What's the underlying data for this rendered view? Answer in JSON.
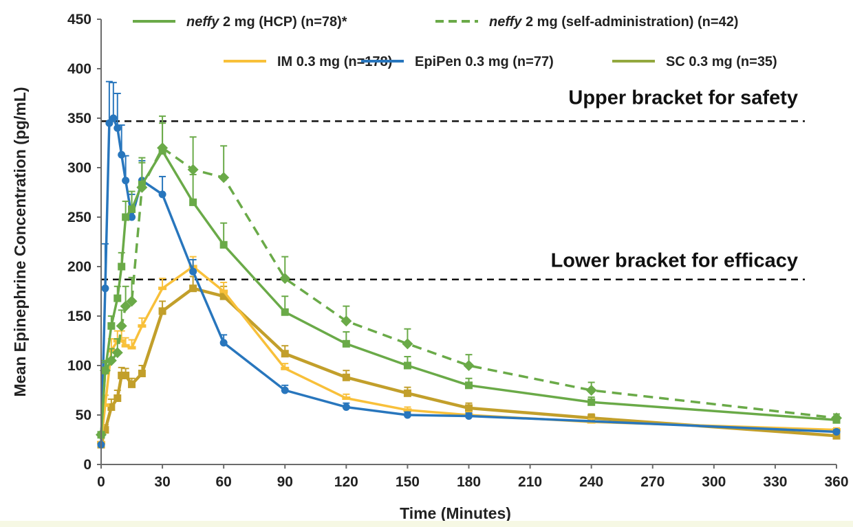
{
  "chart_data": {
    "type": "line",
    "xlabel": "Time (Minutes)",
    "ylabel": "Mean Epinephrine Concentration (pg/mL)",
    "xlim": [
      0,
      360
    ],
    "ylim": [
      0,
      450
    ],
    "x_ticks": [
      0,
      30,
      60,
      90,
      120,
      150,
      180,
      210,
      240,
      270,
      300,
      330,
      360
    ],
    "y_ticks": [
      0,
      50,
      100,
      150,
      200,
      250,
      300,
      350,
      400,
      450
    ],
    "grid": false,
    "legend_position": "top",
    "reference_lines": [
      {
        "label": "Upper bracket for safety",
        "y": 347,
        "style": "dashed"
      },
      {
        "label": "Lower bracket for efficacy",
        "y": 187,
        "style": "dashed"
      }
    ],
    "series": [
      {
        "name_parts": [
          "neffy",
          " 2 mg (HCP) (n=78)*"
        ],
        "color": "#6aaa48",
        "dash": false,
        "marker": "square",
        "x": [
          0,
          2,
          5,
          8,
          10,
          12,
          15,
          20,
          30,
          45,
          60,
          90,
          120,
          150,
          180,
          240,
          360
        ],
        "y": [
          30,
          95,
          140,
          168,
          200,
          250,
          258,
          283,
          317,
          265,
          222,
          154,
          122,
          100,
          80,
          63,
          45
        ],
        "err": [
          0,
          8,
          10,
          12,
          14,
          16,
          18,
          22,
          28,
          28,
          22,
          16,
          12,
          9,
          7,
          5,
          4
        ]
      },
      {
        "name_parts": [
          "neffy",
          " 2 mg (self-administration) (n=42)"
        ],
        "color": "#6aaa48",
        "dash": true,
        "marker": "diamond",
        "x": [
          0,
          2,
          5,
          8,
          10,
          12,
          15,
          20,
          30,
          45,
          60,
          90,
          120,
          150,
          180,
          240,
          360
        ],
        "y": [
          30,
          95,
          105,
          113,
          140,
          160,
          165,
          280,
          320,
          298,
          290,
          188,
          145,
          122,
          100,
          75,
          47
        ],
        "err": [
          0,
          10,
          12,
          14,
          16,
          20,
          24,
          30,
          32,
          33,
          32,
          22,
          15,
          15,
          11,
          8,
          4
        ]
      },
      {
        "name_parts": [
          "IM 0.3 mg (n=178)"
        ],
        "color": "#f8c03a",
        "dash": false,
        "marker": "dash",
        "x": [
          0,
          2,
          5,
          8,
          10,
          12,
          15,
          20,
          30,
          45,
          60,
          90,
          120,
          150,
          180,
          240,
          360
        ],
        "y": [
          22,
          60,
          115,
          125,
          125,
          120,
          118,
          140,
          178,
          200,
          175,
          97,
          67,
          55,
          50,
          43,
          35
        ],
        "err": [
          0,
          10,
          12,
          10,
          10,
          8,
          8,
          8,
          10,
          10,
          9,
          5,
          4,
          3,
          3,
          3,
          2
        ]
      },
      {
        "name_parts": [
          "EpiPen 0.3 mg (n=77)"
        ],
        "color": "#2876bd",
        "dash": false,
        "marker": "circle",
        "x": [
          0,
          2,
          4,
          6,
          8,
          10,
          12,
          15,
          20,
          30,
          45,
          60,
          90,
          120,
          150,
          180,
          360
        ],
        "y": [
          20,
          178,
          345,
          350,
          340,
          313,
          287,
          250,
          287,
          273,
          195,
          123,
          75,
          58,
          50,
          49,
          33
        ],
        "err": [
          0,
          45,
          42,
          36,
          35,
          30,
          25,
          23,
          20,
          18,
          12,
          8,
          5,
          4,
          3,
          3,
          2
        ]
      },
      {
        "name_parts": [
          "SC 0.3 mg (n=35)"
        ],
        "color": "#93a83f",
        "dash": false,
        "marker": "square",
        "legend_color": "#93a83f",
        "line_color": "#c29f2b",
        "x": [
          0,
          2,
          5,
          8,
          10,
          12,
          15,
          20,
          30,
          45,
          60,
          90,
          120,
          150,
          180,
          240,
          360
        ],
        "y": [
          20,
          35,
          58,
          67,
          90,
          90,
          81,
          92,
          155,
          178,
          170,
          112,
          88,
          72,
          57,
          47,
          29
        ],
        "err": [
          0,
          5,
          8,
          8,
          8,
          7,
          6,
          8,
          10,
          12,
          10,
          8,
          7,
          6,
          5,
          4,
          3
        ]
      }
    ]
  }
}
